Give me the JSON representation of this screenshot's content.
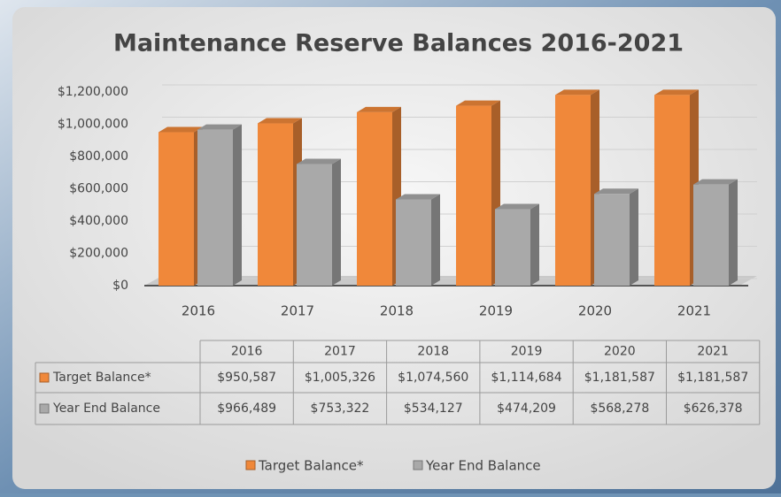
{
  "chart_data": {
    "type": "bar",
    "title": "Maintenance Reserve Balances 2016-2021",
    "categories": [
      "2016",
      "2017",
      "2018",
      "2019",
      "2020",
      "2021"
    ],
    "series": [
      {
        "name": "Target Balance*",
        "color": "#f0883a",
        "values": [
          950587,
          1005326,
          1074560,
          1114684,
          1181587,
          1181587
        ],
        "value_labels": [
          "$950,587",
          "$1,005,326",
          "$1,074,560",
          "$1,114,684",
          "$1,181,587",
          "$1,181,587"
        ]
      },
      {
        "name": "Year End Balance",
        "color": "#a9a9a9",
        "values": [
          966489,
          753322,
          534127,
          474209,
          568278,
          626378
        ],
        "value_labels": [
          "$966,489",
          "$753,322",
          "$534,127",
          "$474,209",
          "$568,278",
          "$626,378"
        ]
      }
    ],
    "ylim": [
      0,
      1200000
    ],
    "yticks": [
      {
        "value": 0,
        "label": "$0"
      },
      {
        "value": 200000,
        "label": "$200,000"
      },
      {
        "value": 400000,
        "label": "$400,000"
      },
      {
        "value": 600000,
        "label": "$600,000"
      },
      {
        "value": 800000,
        "label": "$800,000"
      },
      {
        "value": 1000000,
        "label": "$1,000,000"
      },
      {
        "value": 1200000,
        "label": "$1,200,000"
      }
    ],
    "grid": true,
    "legend": "bottom"
  }
}
